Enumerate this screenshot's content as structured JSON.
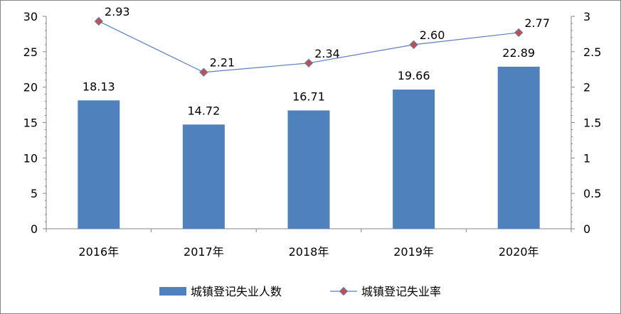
{
  "chart_data": {
    "type": "bar",
    "categories": [
      "2016年",
      "2017年",
      "2018年",
      "2019年",
      "2020年"
    ],
    "series": [
      {
        "name": "城镇登记失业人数",
        "type": "bar",
        "axis": "left",
        "values": [
          18.13,
          14.72,
          16.71,
          19.66,
          22.89
        ],
        "labels": [
          "18.13",
          "14.72",
          "16.71",
          "19.66",
          "22.89"
        ]
      },
      {
        "name": "城镇登记失业率",
        "type": "line",
        "axis": "right",
        "values": [
          2.93,
          2.21,
          2.34,
          2.6,
          2.77
        ],
        "labels": [
          "2.93",
          "2.21",
          "2.34",
          "2.60",
          "2.77"
        ]
      }
    ],
    "y_left": {
      "range": [
        0,
        30
      ],
      "ticks": [
        "0",
        "5",
        "10",
        "15",
        "20",
        "25",
        "30"
      ]
    },
    "y_right": {
      "range": [
        0,
        3
      ],
      "ticks": [
        "0",
        "0.5",
        "1",
        "1.5",
        "2",
        "2.5",
        "3"
      ]
    },
    "grid": false,
    "legend": "bottom",
    "colors": {
      "bar": "#4f81bd",
      "line": "#5b7fc4",
      "marker": "#c0504d",
      "axis": "#868686"
    }
  }
}
